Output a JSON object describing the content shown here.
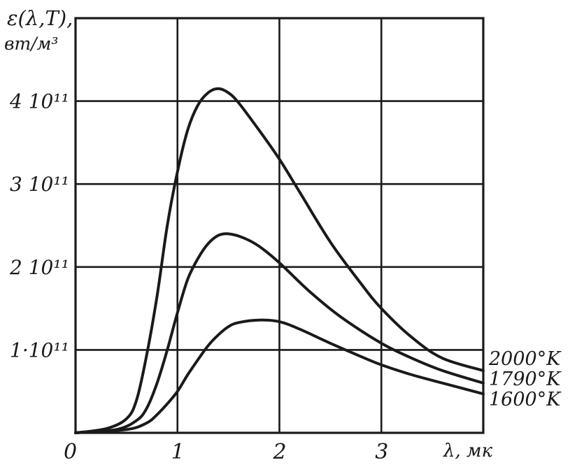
{
  "chart_data": {
    "type": "line",
    "ylabel_line1": "ε(λ,T),",
    "ylabel_line2": "вт/м³",
    "xlabel": "λ, мк",
    "xlim": [
      0,
      4
    ],
    "ylim": [
      0,
      5
    ],
    "grid": true,
    "x_ticks": [
      "0",
      "1",
      "2",
      "3"
    ],
    "y_ticks": [
      "1·10¹¹",
      "2 10¹¹",
      "3 10¹¹",
      "4 10¹¹"
    ],
    "series": [
      {
        "name": "2000°K",
        "x": [
          0,
          0.3,
          0.5,
          0.6,
          0.7,
          0.8,
          0.9,
          1.0,
          1.1,
          1.2,
          1.3,
          1.4,
          1.5,
          1.6,
          1.8,
          2.0,
          2.2,
          2.5,
          2.8,
          3.0,
          3.3,
          3.6,
          4.0
        ],
        "y": [
          0,
          0.05,
          0.17,
          0.4,
          0.95,
          1.65,
          2.5,
          3.15,
          3.65,
          3.95,
          4.1,
          4.15,
          4.1,
          3.98,
          3.65,
          3.3,
          2.9,
          2.3,
          1.8,
          1.5,
          1.15,
          0.9,
          0.75
        ]
      },
      {
        "name": "1790°K",
        "x": [
          0,
          0.4,
          0.6,
          0.7,
          0.8,
          0.9,
          1.0,
          1.1,
          1.2,
          1.3,
          1.4,
          1.5,
          1.65,
          1.8,
          2.0,
          2.3,
          2.6,
          3.0,
          3.3,
          3.6,
          4.0
        ],
        "y": [
          0,
          0.04,
          0.15,
          0.3,
          0.6,
          1.0,
          1.45,
          1.85,
          2.1,
          2.28,
          2.38,
          2.4,
          2.35,
          2.25,
          2.05,
          1.7,
          1.4,
          1.08,
          0.9,
          0.75,
          0.6
        ]
      },
      {
        "name": "1600°K",
        "x": [
          0,
          0.5,
          0.7,
          0.8,
          0.9,
          1.0,
          1.1,
          1.2,
          1.3,
          1.4,
          1.5,
          1.6,
          1.8,
          2.0,
          2.2,
          2.5,
          2.8,
          3.0,
          3.3,
          3.6,
          4.0
        ],
        "y": [
          0,
          0.04,
          0.12,
          0.22,
          0.35,
          0.5,
          0.7,
          0.88,
          1.05,
          1.18,
          1.28,
          1.33,
          1.36,
          1.34,
          1.25,
          1.08,
          0.92,
          0.82,
          0.7,
          0.6,
          0.47
        ]
      }
    ]
  }
}
